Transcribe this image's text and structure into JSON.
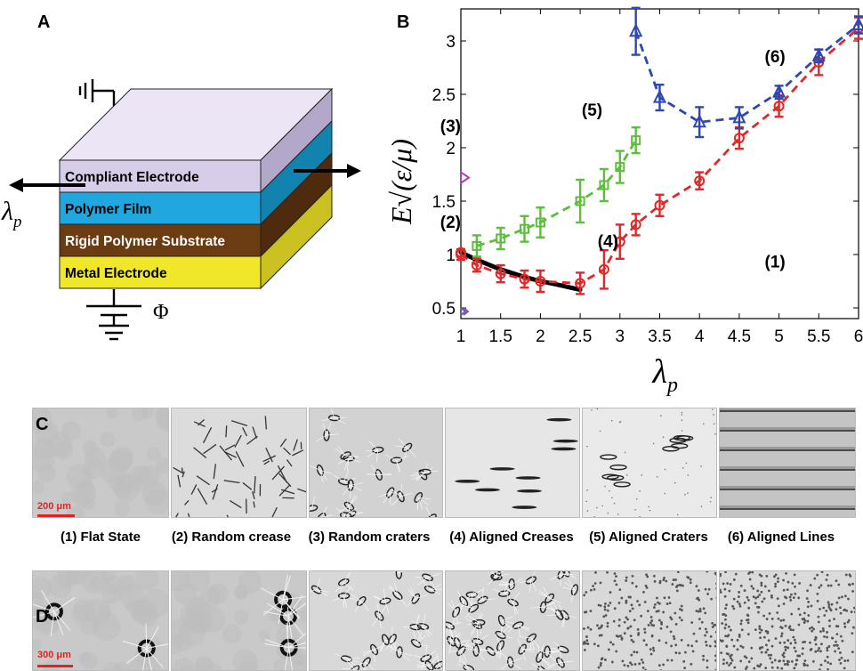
{
  "panels": {
    "a": "A",
    "b": "B",
    "c": "C",
    "d": "D"
  },
  "schematic": {
    "layers": [
      {
        "label": "Compliant Electrode",
        "color": "#d7cde8",
        "side": "#b3a8c9"
      },
      {
        "label": "Polymer Film",
        "color": "#20a7df",
        "side": "#1183ae"
      },
      {
        "label": "Rigid Polymer Substrate",
        "color": "#6b3b12",
        "side": "#4f2a0c"
      },
      {
        "label": "Metal Electrode",
        "color": "#f0e72a",
        "side": "#c8c11f"
      }
    ],
    "stretch_symbol": "λ",
    "stretch_sub": "p",
    "voltage_symbol": "Φ"
  },
  "chart_data": {
    "type": "line",
    "xlabel": "λ",
    "xlabel_sub": "p",
    "ylabel": "E√(ε/μ)",
    "xlim": [
      1,
      6
    ],
    "ylim": [
      0.4,
      3.3
    ],
    "xticks": [
      "1",
      "1.5",
      "2",
      "2.5",
      "3",
      "3.5",
      "4",
      "4.5",
      "5",
      "5.5",
      "6"
    ],
    "xtick_values": [
      1,
      1.5,
      2,
      2.5,
      3,
      3.5,
      4,
      4.5,
      5,
      5.5,
      6
    ],
    "yticks": [
      "0.5",
      "1",
      "1.5",
      "2",
      "2.5",
      "3"
    ],
    "ytick_values": [
      0.5,
      1,
      1.5,
      2,
      2.5,
      3
    ],
    "series": [
      {
        "marker": "square",
        "color": "#5bbf3a",
        "x": [
          1.2,
          1.5,
          1.8,
          2.0,
          2.5,
          2.8,
          3.0,
          3.2
        ],
        "y": [
          1.08,
          1.15,
          1.24,
          1.3,
          1.5,
          1.65,
          1.82,
          2.07
        ],
        "err": [
          0.1,
          0.1,
          0.12,
          0.14,
          0.2,
          0.15,
          0.15,
          0.12
        ]
      },
      {
        "marker": "circle",
        "color": "#e02828",
        "x": [
          1.0,
          1.2,
          1.5,
          1.8,
          2.0,
          2.5,
          2.8,
          3.0,
          3.2,
          3.5,
          4.0,
          4.5,
          5.0,
          5.5,
          6.0
        ],
        "y": [
          1.0,
          0.9,
          0.82,
          0.77,
          0.75,
          0.73,
          0.86,
          1.12,
          1.28,
          1.46,
          1.69,
          2.09,
          2.39,
          2.8,
          3.12
        ],
        "err": [
          0.05,
          0.06,
          0.08,
          0.08,
          0.1,
          0.1,
          0.18,
          0.16,
          0.1,
          0.1,
          0.08,
          0.1,
          0.1,
          0.12,
          0.1
        ]
      },
      {
        "marker": "triangle",
        "color": "#2e47b3",
        "x": [
          3.2,
          3.5,
          4.0,
          4.5,
          5.0,
          5.5,
          6.0
        ],
        "y": [
          3.09,
          2.47,
          2.24,
          2.28,
          2.52,
          2.86,
          3.15
        ],
        "err": [
          0.22,
          0.12,
          0.14,
          0.1,
          0.06,
          0.06,
          0.08
        ]
      }
    ],
    "theory_curve": {
      "color": "#000000",
      "x": [
        1.0,
        1.2,
        1.5,
        1.8,
        2.0,
        2.2,
        2.5
      ],
      "y": [
        1.02,
        0.95,
        0.86,
        0.79,
        0.75,
        0.72,
        0.67
      ]
    },
    "annotations": [
      {
        "text": "(1)",
        "x": 4.95,
        "y": 0.88
      },
      {
        "text": "(2)",
        "x": 1.0,
        "y": 1.25
      },
      {
        "text": "(3)",
        "x": 1.0,
        "y": 2.15
      },
      {
        "text": "(4)",
        "x": 2.85,
        "y": 1.07
      },
      {
        "text": "(5)",
        "x": 2.65,
        "y": 2.3
      },
      {
        "text": "(6)",
        "x": 4.95,
        "y": 2.8
      }
    ],
    "edge_markers": [
      {
        "shape": "triangle-right",
        "color": "#b03ab0",
        "x": 1.0,
        "y": 1.72
      },
      {
        "shape": "circle",
        "color": "#e02828",
        "x": 1.0,
        "y": 1.02
      },
      {
        "shape": "chevron",
        "color": "#7a57b8",
        "x": 1.0,
        "y": 0.45
      }
    ]
  },
  "row_c": {
    "scale_label": "200 μm",
    "captions": [
      "(1) Flat State",
      "(2) Random crease",
      "(3) Random craters",
      "(4) Aligned Creases",
      "(5) Aligned Craters",
      "(6) Aligned Lines"
    ]
  },
  "row_d": {
    "scale_label": "300 μm"
  }
}
